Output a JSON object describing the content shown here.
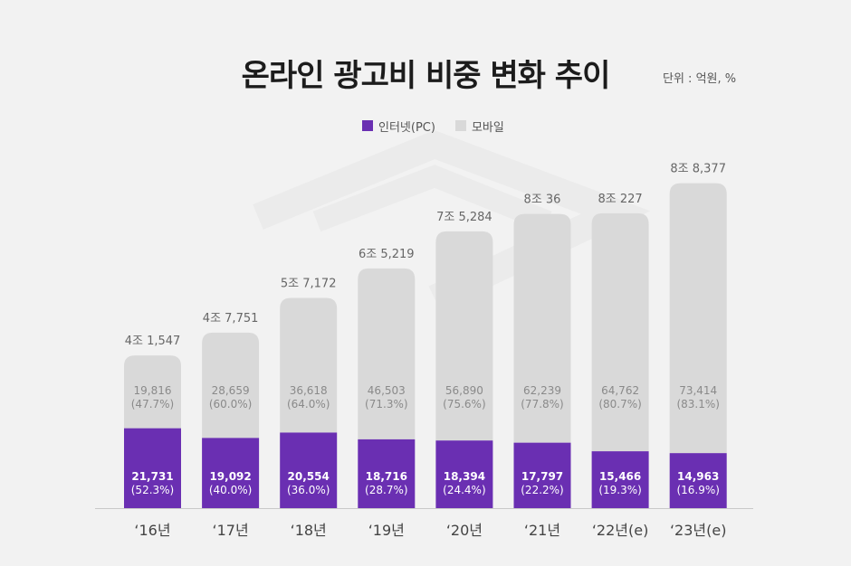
{
  "header": {
    "title": "온라인 광고비 비중 변화 추이",
    "unit": "단위 : 억원, %"
  },
  "legend": [
    {
      "label": "인터넷(PC)",
      "color": "#6a2fb2"
    },
    {
      "label": "모바일",
      "color": "#d9d9d9"
    }
  ],
  "chart_data": {
    "type": "bar",
    "stacked": true,
    "categories": [
      "‘16년",
      "‘17년",
      "‘18년",
      "‘19년",
      "‘20년",
      "‘21년",
      "‘22년(e)",
      "‘23년(e)"
    ],
    "series": [
      {
        "name": "인터넷(PC)",
        "color": "#6a2fb2",
        "values": [
          21731,
          19092,
          20554,
          18716,
          18394,
          17797,
          15466,
          14963
        ],
        "value_labels": [
          "21,731",
          "19,092",
          "20,554",
          "18,716",
          "18,394",
          "17,797",
          "15,466",
          "14,963"
        ],
        "share_labels": [
          "(52.3%)",
          "(40.0%)",
          "(36.0%)",
          "(28.7%)",
          "(24.4%)",
          "(22.2%)",
          "(19.3%)",
          "(16.9%)"
        ]
      },
      {
        "name": "모바일",
        "color": "#d9d9d9",
        "values": [
          19816,
          28659,
          36618,
          46503,
          56890,
          62239,
          64762,
          73414
        ],
        "value_labels": [
          "19,816",
          "28,659",
          "36,618",
          "46,503",
          "56,890",
          "62,239",
          "64,762",
          "73,414"
        ],
        "share_labels": [
          "(47.7%)",
          "(60.0%)",
          "(64.0%)",
          "(71.3%)",
          "(75.6%)",
          "(77.8%)",
          "(80.7%)",
          "(83.1%)"
        ]
      }
    ],
    "totals": [
      41547,
      47751,
      57172,
      65219,
      75284,
      80036,
      80227,
      88377
    ],
    "total_labels": [
      "4조 1,547",
      "4조 7,751",
      "5조 7,172",
      "6조 5,219",
      "7조 5,284",
      "8조 36",
      "8조 227",
      "8조 8,377"
    ],
    "grid": false,
    "legend_position": "top-center"
  }
}
